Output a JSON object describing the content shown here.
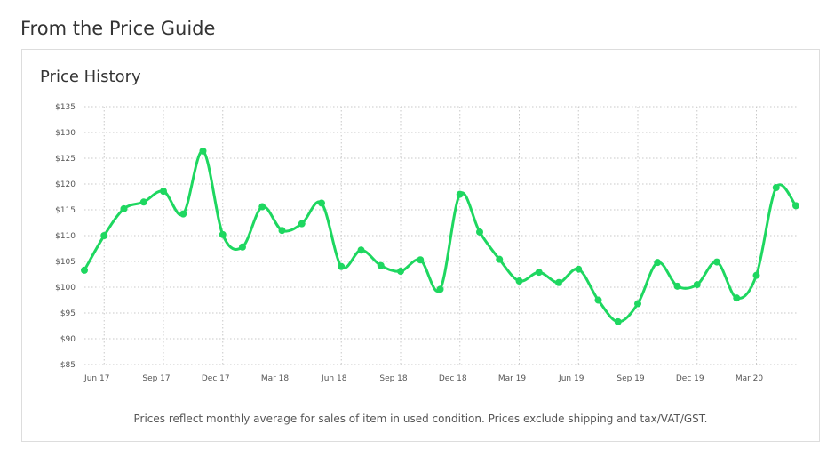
{
  "header": {
    "title": "From the Price Guide"
  },
  "card": {
    "title": "Price History",
    "footnote": "Prices reflect monthly average for sales of item in used condition. Prices exclude shipping and tax/VAT/GST."
  },
  "colors": {
    "line": "#1ed760",
    "grid": "#c8c8c8",
    "text": "#555555"
  },
  "chart_data": {
    "type": "line",
    "title": "Price History",
    "xlabel": "",
    "ylabel": "",
    "ylim": [
      85,
      135
    ],
    "yticks": [
      85,
      90,
      95,
      100,
      105,
      110,
      115,
      120,
      125,
      130,
      135
    ],
    "ytick_labels": [
      "$85",
      "$90",
      "$95",
      "$100",
      "$105",
      "$110",
      "$115",
      "$120",
      "$125",
      "$130",
      "$135"
    ],
    "xticks": [
      "Jun 17",
      "Sep 17",
      "Dec 17",
      "Mar 18",
      "Jun 18",
      "Sep 18",
      "Dec 18",
      "Mar 19",
      "Jun 19",
      "Sep 19",
      "Dec 19",
      "Mar 20"
    ],
    "grid": true,
    "series": [
      {
        "values": [
          103.3,
          110,
          115.2,
          116.5,
          118.6,
          114.2,
          126.4,
          110.2,
          107.8,
          115.6,
          111,
          112.3,
          116.3,
          104,
          107.2,
          104.2,
          103.1,
          105.3,
          99.6,
          118,
          110.7,
          105.4,
          101.2,
          102.9,
          100.9,
          103.5,
          97.5,
          93.3,
          96.8,
          104.8,
          100.2,
          100.5,
          104.9,
          97.9,
          102.3,
          119.3,
          115.8
        ]
      }
    ]
  }
}
